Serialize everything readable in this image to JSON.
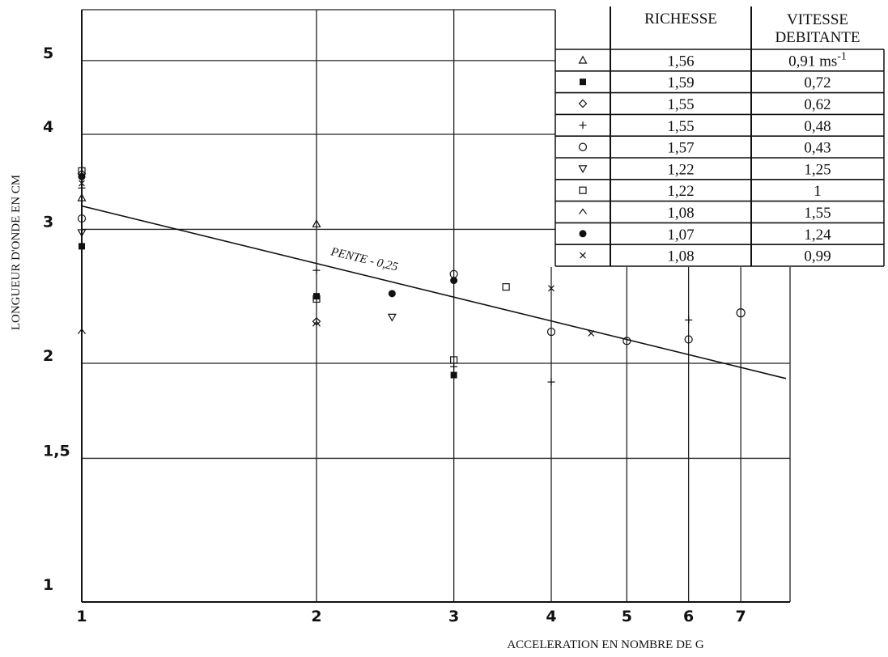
{
  "chart_data": {
    "type": "scatter",
    "title": "",
    "xlabel": "ACCELERATION EN NOMBRE DE G",
    "ylabel": "LONGUEUR D'ONDE EN CM",
    "x_scale": "log",
    "y_scale": "log",
    "xlim": [
      1,
      8
    ],
    "ylim": [
      1,
      5.6
    ],
    "x_ticks": [
      {
        "value": 1,
        "label": "1"
      },
      {
        "value": 2,
        "label": "2"
      },
      {
        "value": 3,
        "label": "3"
      },
      {
        "value": 4,
        "label": "4"
      },
      {
        "value": 5,
        "label": "5"
      },
      {
        "value": 6,
        "label": "6"
      },
      {
        "value": 7,
        "label": "7"
      }
    ],
    "y_ticks": [
      {
        "value": 1,
        "label": "1"
      },
      {
        "value": 1.5,
        "label": "1,5"
      },
      {
        "value": 2,
        "label": "2"
      },
      {
        "value": 3,
        "label": "3"
      },
      {
        "value": 4,
        "label": "4"
      },
      {
        "value": 5,
        "label": "5"
      }
    ],
    "grid": true,
    "fit_line": {
      "x": [
        1,
        8
      ],
      "y": [
        3.22,
        1.91
      ],
      "label": "PENTE - 0,25"
    },
    "table": {
      "headers": [
        "",
        "RICHESSE",
        "VITESSE",
        "DEBITANTE"
      ],
      "rows": [
        {
          "symbol": "triangle-up",
          "richesse": "1,56",
          "vitesse": "0,91 ms",
          "sup": "-1"
        },
        {
          "symbol": "square-filled",
          "richesse": "1,59",
          "vitesse": "0,72",
          "sup": ""
        },
        {
          "symbol": "diamond",
          "richesse": "1,55",
          "vitesse": "0,62",
          "sup": ""
        },
        {
          "symbol": "plus",
          "richesse": "1,55",
          "vitesse": "0,48",
          "sup": ""
        },
        {
          "symbol": "circle",
          "richesse": "1,57",
          "vitesse": "0,43",
          "sup": ""
        },
        {
          "symbol": "triangle-down",
          "richesse": "1,22",
          "vitesse": "1,25",
          "sup": ""
        },
        {
          "symbol": "square",
          "richesse": "1,22",
          "vitesse": "1",
          "sup": ""
        },
        {
          "symbol": "caret",
          "richesse": "1,08",
          "vitesse": "1,55",
          "sup": ""
        },
        {
          "symbol": "circle-filled",
          "richesse": "1,07",
          "vitesse": "1,24",
          "sup": ""
        },
        {
          "symbol": "cross",
          "richesse": "1,08",
          "vitesse": "0,99",
          "sup": ""
        }
      ]
    },
    "series": [
      {
        "symbol": "triangle-up",
        "x": [
          1,
          2
        ],
        "y": [
          3.3,
          3.05
        ]
      },
      {
        "symbol": "square-filled",
        "x": [
          1,
          2,
          3
        ],
        "y": [
          2.85,
          2.45,
          1.93
        ]
      },
      {
        "symbol": "diamond",
        "x": [
          1,
          2
        ],
        "y": [
          3.55,
          2.27
        ]
      },
      {
        "symbol": "plus",
        "x": [
          1,
          2,
          3,
          4,
          6
        ],
        "y": [
          3.4,
          2.65,
          1.98,
          1.89,
          2.28
        ]
      },
      {
        "symbol": "circle",
        "x": [
          1,
          3,
          4,
          5,
          6
        ],
        "y": [
          3.1,
          2.62,
          2.2,
          2.14,
          2.15
        ]
      },
      {
        "symbol": "triangle-down",
        "x": [
          1,
          2.5
        ],
        "y": [
          2.97,
          2.3
        ]
      },
      {
        "symbol": "square",
        "x": [
          1,
          2,
          3,
          3.5
        ],
        "y": [
          3.58,
          2.43,
          2.02,
          2.52
        ]
      },
      {
        "symbol": "caret",
        "x": [
          1,
          2
        ],
        "y": [
          2.2,
          2.25
        ]
      },
      {
        "symbol": "circle-filled",
        "x": [
          1,
          2.5,
          3
        ],
        "y": [
          3.52,
          2.47,
          2.57
        ]
      },
      {
        "symbol": "cross",
        "x": [
          1,
          4,
          4.5
        ],
        "y": [
          3.45,
          2.51,
          2.19
        ]
      }
    ],
    "point_circle": {
      "x": 7,
      "y": 2.33
    }
  }
}
